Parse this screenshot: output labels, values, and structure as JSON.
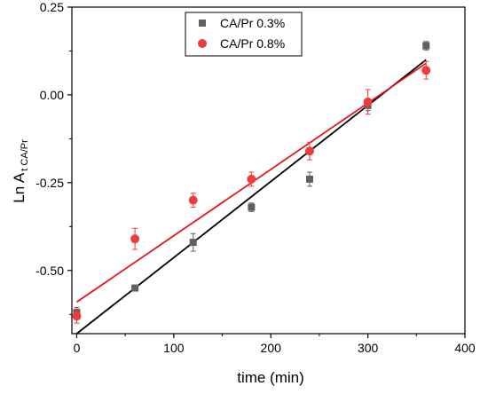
{
  "chart_data": {
    "type": "scatter",
    "xlabel": "time (min)",
    "ylabel_main": "Ln A",
    "ylabel_sub": "t CA/Pr",
    "xlim": [
      -5,
      400
    ],
    "ylim": [
      -0.68,
      0.25
    ],
    "xticks": [
      0,
      100,
      200,
      300,
      400
    ],
    "yticks": [
      0.25,
      0.0,
      -0.25,
      -0.5
    ],
    "ytick_labels": [
      "0.25",
      "0.00",
      "-0.25",
      "-0.50"
    ],
    "legend_position": "top-center",
    "series": [
      {
        "name": "CA/Pr 0.3%",
        "marker": "square",
        "color": "#606060",
        "x": [
          0,
          60,
          120,
          180,
          240,
          300,
          360
        ],
        "y": [
          -0.62,
          -0.55,
          -0.42,
          -0.32,
          -0.24,
          -0.03,
          0.14
        ],
        "err": [
          0.015,
          0.008,
          0.025,
          0.012,
          0.02,
          0.015,
          0.012
        ],
        "fit": {
          "x": [
            0,
            360
          ],
          "y": [
            -0.68,
            0.1
          ]
        }
      },
      {
        "name": "CA/Pr 0.8%",
        "marker": "circle",
        "color": "#ef3b3b",
        "x": [
          0,
          60,
          120,
          180,
          240,
          300,
          360
        ],
        "y": [
          -0.63,
          -0.41,
          -0.3,
          -0.24,
          -0.16,
          -0.02,
          0.07
        ],
        "err": [
          0.02,
          0.03,
          0.02,
          0.02,
          0.025,
          0.035,
          0.025
        ],
        "fit": {
          "x": [
            0,
            360
          ],
          "y": [
            -0.59,
            0.09
          ]
        }
      }
    ]
  }
}
